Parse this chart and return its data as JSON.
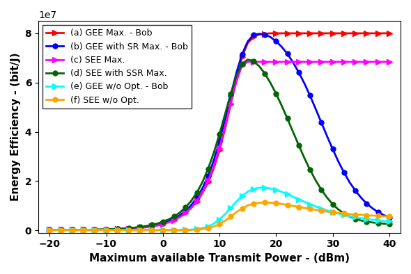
{
  "xlabel": "Maximum available Transmit Power - (dBm)",
  "ylabel": "Energy Efficiency - (bit/J)",
  "xlim": [
    -22,
    42
  ],
  "ylim": [
    -1000000.0,
    85000000.0
  ],
  "x_ticks": [
    -20,
    -10,
    0,
    10,
    20,
    30,
    40
  ],
  "y_ticks": [
    0,
    20000000.0,
    40000000.0,
    60000000.0,
    80000000.0
  ],
  "x_data": [
    -20,
    -19,
    -18,
    -17,
    -16,
    -15,
    -14,
    -13,
    -12,
    -11,
    -10,
    -9,
    -8,
    -7,
    -6,
    -5,
    -4,
    -3,
    -2,
    -1,
    0,
    1,
    2,
    3,
    4,
    5,
    6,
    7,
    8,
    9,
    10,
    11,
    12,
    13,
    14,
    15,
    16,
    17,
    18,
    19,
    20,
    21,
    22,
    23,
    24,
    25,
    26,
    27,
    28,
    29,
    30,
    31,
    32,
    33,
    34,
    35,
    36,
    37,
    38,
    39,
    40
  ],
  "series": {
    "a_gee_bob": {
      "label": "(a) GEE Max. - Bob",
      "color": "#ff0000",
      "marker": ">",
      "markersize": 6,
      "linewidth": 2.0,
      "values": [
        200000.0,
        200000.0,
        200000.0,
        200000.0,
        200000.0,
        200000.0,
        200000.0,
        200000.0,
        200000.0,
        300000.0,
        300000.0,
        400000.0,
        500000.0,
        600000.0,
        700000.0,
        900000.0,
        1100000.0,
        1400000.0,
        1700000.0,
        2100000.0,
        2700000.0,
        3400000.0,
        4300000.0,
        5500000.0,
        7100000.0,
        9100000.0,
        11700000.0,
        15100000.0,
        19500000.0,
        25200000.0,
        32400000.0,
        41300000.0,
        51300000.0,
        61500000.0,
        70500000.0,
        76000000.0,
        78500000.0,
        79500000.0,
        79800000.0,
        80000000.0,
        80000000.0,
        80000000.0,
        80000000.0,
        80000000.0,
        80000000.0,
        80000000.0,
        80000000.0,
        80000000.0,
        80000000.0,
        80000000.0,
        80000000.0,
        80000000.0,
        80000000.0,
        80000000.0,
        80000000.0,
        80000000.0,
        80000000.0,
        80000000.0,
        80000000.0,
        80000000.0,
        80000000.0
      ],
      "marker_every": 2
    },
    "b_gee_sr_bob": {
      "label": "(b) GEE with SR Max. - Bob",
      "color": "#0000ff",
      "marker": "o",
      "markersize": 5,
      "linewidth": 2.0,
      "values": [
        200000.0,
        200000.0,
        200000.0,
        200000.0,
        200000.0,
        200000.0,
        200000.0,
        200000.0,
        200000.0,
        300000.0,
        300000.0,
        400000.0,
        500000.0,
        600000.0,
        700000.0,
        900000.0,
        1200000.0,
        1500000.0,
        1800000.0,
        2300000.0,
        2900000.0,
        3700000.0,
        4700000.0,
        6100000.0,
        7900000.0,
        10200000.0,
        13200000.0,
        17100000.0,
        22100000.0,
        28400000.0,
        36200000.0,
        45200000.0,
        54800000.0,
        64000000.0,
        71500000.0,
        76700000.0,
        79300000.0,
        79800000.0,
        79500000.0,
        78500000.0,
        76800000.0,
        74500000.0,
        71700000.0,
        68200000.0,
        64200000.0,
        59700000.0,
        54700000.0,
        49300000.0,
        43800000.0,
        38300000.0,
        33000000.0,
        28000000.0,
        23500000.0,
        19500000.0,
        16200000.0,
        13300000.0,
        10900000.0,
        9000000.0,
        7400000.0,
        6200000.0,
        5200000.0
      ],
      "marker_every": 2
    },
    "c_see_max": {
      "label": "(c) SEE Max.",
      "color": "#ff00ff",
      "marker": ">",
      "markersize": 6,
      "linewidth": 2.0,
      "values": [
        200000.0,
        200000.0,
        200000.0,
        200000.0,
        200000.0,
        200000.0,
        200000.0,
        200000.0,
        200000.0,
        200000.0,
        300000.0,
        300000.0,
        400000.0,
        500000.0,
        600000.0,
        800000.0,
        1000000.0,
        1200000.0,
        1500000.0,
        1900000.0,
        2500000.0,
        3200000.0,
        4100000.0,
        5400000.0,
        7000000.0,
        9100000.0,
        11900000.0,
        15500000.0,
        20100000.0,
        26000000.0,
        33400000.0,
        42200000.0,
        51500000.0,
        60400000.0,
        67000000.0,
        68400000.0,
        68400000.0,
        68400000.0,
        68400000.0,
        68400000.0,
        68400000.0,
        68400000.0,
        68400000.0,
        68400000.0,
        68400000.0,
        68400000.0,
        68400000.0,
        68400000.0,
        68400000.0,
        68400000.0,
        68400000.0,
        68400000.0,
        68400000.0,
        68400000.0,
        68400000.0,
        68400000.0,
        68400000.0,
        68400000.0,
        68400000.0,
        68400000.0,
        68400000.0
      ],
      "marker_every": 2
    },
    "d_see_ssr": {
      "label": "(d) SEE with SSR Max.",
      "color": "#006400",
      "marker": "o",
      "markersize": 5,
      "linewidth": 2.0,
      "values": [
        200000.0,
        200000.0,
        200000.0,
        200000.0,
        200000.0,
        200000.0,
        200000.0,
        200000.0,
        300000.0,
        300000.0,
        400000.0,
        500000.0,
        600000.0,
        700000.0,
        900000.0,
        1100000.0,
        1400000.0,
        1700000.0,
        2200000.0,
        2700000.0,
        3500000.0,
        4400000.0,
        5600000.0,
        7200000.0,
        9300000.0,
        11900000.0,
        15300000.0,
        19600000.0,
        25000000.0,
        31500000.0,
        39000000.0,
        47200000.0,
        55500000.0,
        62800000.0,
        67600000.0,
        69300000.0,
        68700000.0,
        66700000.0,
        63700000.0,
        59900000.0,
        55500000.0,
        50600000.0,
        45400000.0,
        40000000.0,
        34600000.0,
        29400000.0,
        24600000.0,
        20300000.0,
        16500000.0,
        13300000.0,
        10600000.0,
        8500000.0,
        6800000.0,
        5600000.0,
        4700000.0,
        4000000.0,
        3500000.0,
        3200000.0,
        2900000.0,
        2700000.0,
        2500000.0
      ],
      "marker_every": 2
    },
    "e_gee_wo": {
      "label": "(e) GEE w/o Opt. - Bob",
      "color": "#00ffff",
      "marker": ">",
      "markersize": 6,
      "linewidth": 2.0,
      "values": [
        100000.0,
        100000.0,
        100000.0,
        100000.0,
        100000.0,
        100000.0,
        100000.0,
        100000.0,
        100000.0,
        100000.0,
        100000.0,
        100000.0,
        100000.0,
        100000.0,
        100000.0,
        100000.0,
        100000.0,
        100000.0,
        100000.0,
        100000.0,
        100000.0,
        100000.0,
        100000.0,
        100000.0,
        200000.0,
        300000.0,
        500000.0,
        900000.0,
        1600000.0,
        2700000.0,
        4400000.0,
        6600000.0,
        9100000.0,
        11700000.0,
        14000000.0,
        15700000.0,
        16800000.0,
        17300000.0,
        17300000.0,
        17000000.0,
        16400000.0,
        15600000.0,
        14600000.0,
        13600000.0,
        12600000.0,
        11600000.0,
        10600000.0,
        9700000.0,
        8900000.0,
        8100000.0,
        7400000.0,
        6800000.0,
        6200000.0,
        5700000.0,
        5300000.0,
        4900000.0,
        4600000.0,
        4300000.0,
        4000000.0,
        3800000.0,
        3600000.0
      ],
      "marker_every": 2
    },
    "f_see_wo": {
      "label": "(f) SEE w/o Opt.",
      "color": "#ffa500",
      "marker": "o",
      "markersize": 5,
      "linewidth": 2.0,
      "values": [
        100000.0,
        100000.0,
        100000.0,
        100000.0,
        100000.0,
        100000.0,
        100000.0,
        100000.0,
        100000.0,
        100000.0,
        100000.0,
        100000.0,
        100000.0,
        100000.0,
        100000.0,
        100000.0,
        100000.0,
        100000.0,
        100000.0,
        100000.0,
        100000.0,
        100000.0,
        100000.0,
        100000.0,
        100000.0,
        200000.0,
        300000.0,
        500000.0,
        900000.0,
        1500000.0,
        2500000.0,
        3900000.0,
        5600000.0,
        7400000.0,
        8900000.0,
        10100000.0,
        10800000.0,
        11200000.0,
        11300000.0,
        11200000.0,
        11000000.0,
        10700000.0,
        10300000.0,
        9900000.0,
        9500000.0,
        9100000.0,
        8700000.0,
        8300000.0,
        7900000.0,
        7600000.0,
        7300000.0,
        7000000.0,
        6800000.0,
        6600000.0,
        6400000.0,
        6300000.0,
        6100000.0,
        6000000.0,
        5900000.0,
        5700000.0,
        5600000.0
      ],
      "marker_every": 2
    }
  },
  "legend_loc": "upper left",
  "legend_fontsize": 9,
  "tick_fontsize": 10,
  "label_fontsize": 11,
  "figsize": [
    5.9,
    3.94
  ],
  "dpi": 100
}
